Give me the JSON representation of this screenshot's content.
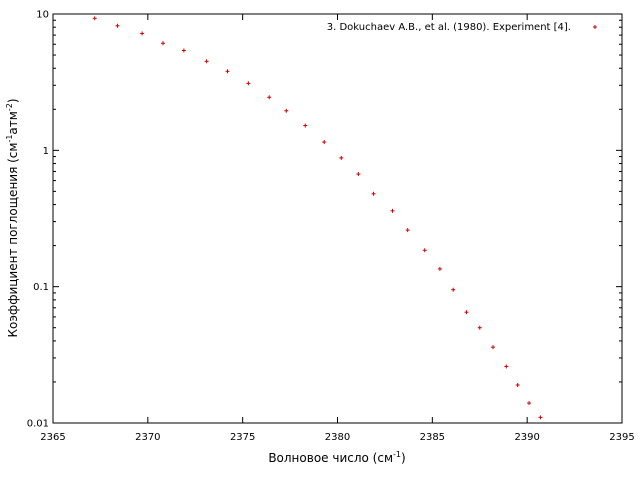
{
  "chart_data": {
    "type": "scatter",
    "title": "",
    "xlabel": "Волновое число (см",
    "xlabel_sup": "-1",
    "xlabel_tail": ")",
    "ylabel_parts": [
      "Коэффициент поглощения (см",
      "-1",
      "атм",
      "-2",
      ")"
    ],
    "xlim": [
      2365,
      2395
    ],
    "ylim": [
      0.01,
      10
    ],
    "yscale": "log",
    "grid": false,
    "legend_placement": "top-right",
    "x_ticks": [
      2365,
      2370,
      2375,
      2380,
      2385,
      2390,
      2395
    ],
    "x_tick_labels": [
      "2365",
      "2370",
      "2375",
      "2380",
      "2385",
      "2390",
      "2395"
    ],
    "y_ticks": [
      0.01,
      0.1,
      1,
      10
    ],
    "y_tick_labels": [
      "0.01",
      "0.1",
      "1",
      "10"
    ],
    "series": [
      {
        "name": "3. Dokuchaev A.B., et al. (1980). Experiment [4].",
        "color": "#cc0000",
        "marker": "plus",
        "x": [
          2367.2,
          2368.4,
          2369.7,
          2370.8,
          2371.9,
          2373.1,
          2374.2,
          2375.3,
          2376.4,
          2377.3,
          2378.3,
          2379.3,
          2380.2,
          2381.1,
          2381.9,
          2382.9,
          2383.7,
          2384.6,
          2385.4,
          2386.1,
          2386.8,
          2387.5,
          2388.2,
          2388.9,
          2389.5,
          2390.1,
          2390.7
        ],
        "y": [
          9.3,
          8.2,
          7.2,
          6.1,
          5.4,
          4.5,
          3.8,
          3.1,
          2.45,
          1.95,
          1.52,
          1.15,
          0.88,
          0.67,
          0.48,
          0.36,
          0.26,
          0.185,
          0.135,
          0.095,
          0.065,
          0.05,
          0.036,
          0.026,
          0.019,
          0.014,
          0.011
        ]
      }
    ]
  }
}
